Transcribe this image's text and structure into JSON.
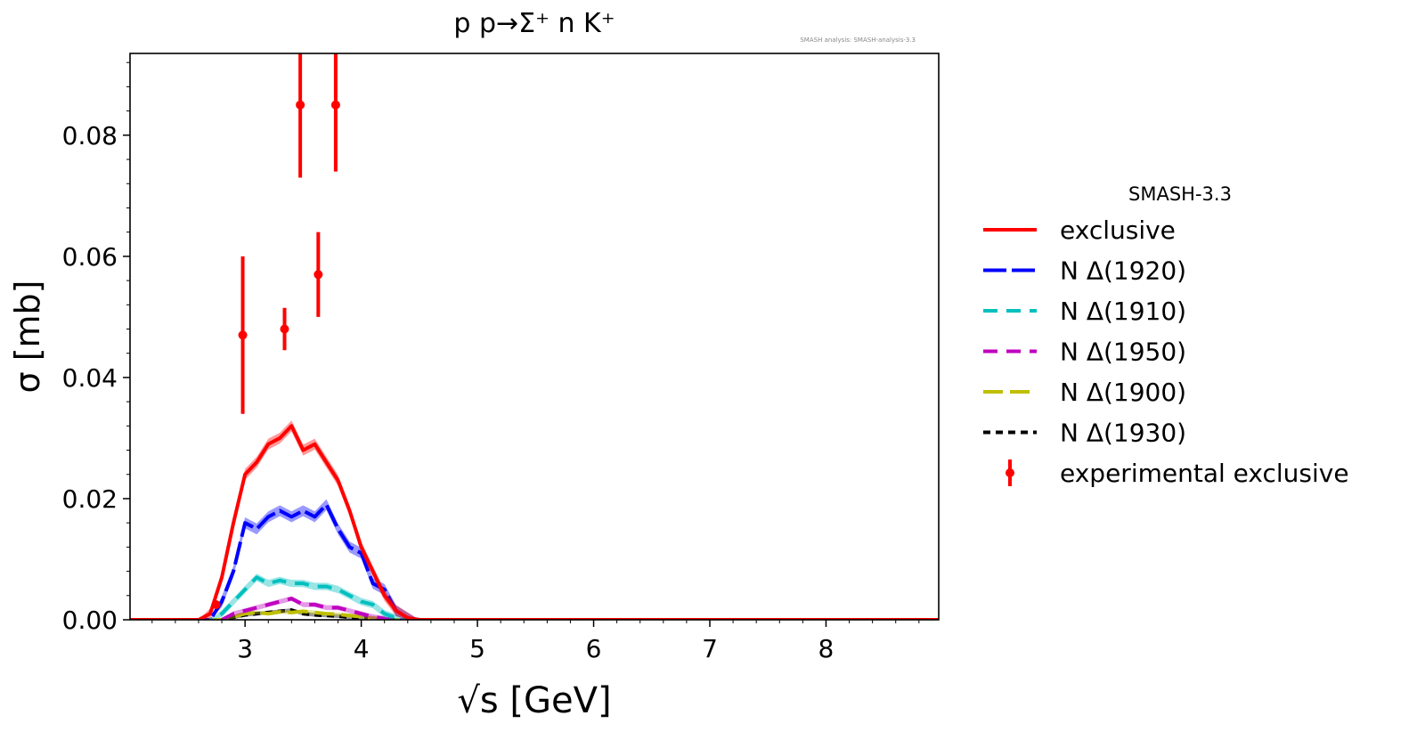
{
  "chart_data": {
    "type": "line",
    "title": "p p→Σ⁺ n K⁺",
    "watermark": "SMASH analysis: SMASH-analysis-3.3",
    "xlabel": "√s [GeV]",
    "ylabel": "σ [mb]",
    "xlim": [
      2.01,
      8.97
    ],
    "ylim": [
      0,
      0.0935
    ],
    "xticks": [
      "3",
      "4",
      "5",
      "6",
      "7",
      "8"
    ],
    "xtick_values": [
      3,
      4,
      5,
      6,
      7,
      8
    ],
    "yticks": [
      "0.00",
      "0.02",
      "0.04",
      "0.06",
      "0.08"
    ],
    "ytick_values": [
      0,
      0.02,
      0.04,
      0.06,
      0.08
    ],
    "grid": false,
    "legend": {
      "title": "SMASH-3.3",
      "placement": "outside-right"
    },
    "x": [
      2.0,
      2.6,
      2.7,
      2.8,
      2.9,
      3.0,
      3.1,
      3.2,
      3.3,
      3.4,
      3.5,
      3.6,
      3.7,
      3.8,
      3.9,
      4.0,
      4.1,
      4.2,
      4.3,
      4.4,
      4.5,
      9.0
    ],
    "series": [
      {
        "name": "exclusive",
        "color": "#ff0000",
        "dash": "solid",
        "uncertainty": 0.0009,
        "values": [
          0,
          0,
          0.001,
          0.007,
          0.016,
          0.024,
          0.026,
          0.029,
          0.03,
          0.032,
          0.028,
          0.029,
          0.026,
          0.023,
          0.018,
          0.012,
          0.008,
          0.004,
          0.0015,
          0.0003,
          0,
          0
        ]
      },
      {
        "name": "N Δ(1920)",
        "color": "#0000ff",
        "dash": "long",
        "uncertainty": 0.0009,
        "values": [
          0,
          0,
          0,
          0.003,
          0.008,
          0.016,
          0.015,
          0.017,
          0.018,
          0.017,
          0.018,
          0.017,
          0.019,
          0.015,
          0.012,
          0.011,
          0.006,
          0.005,
          0.0015,
          0.0003,
          0,
          0
        ]
      },
      {
        "name": "N Δ(1910)",
        "color": "#00bfbf",
        "dash": "medium",
        "uncertainty": 0.0006,
        "values": [
          0,
          0,
          0,
          0.001,
          0.003,
          0.005,
          0.007,
          0.006,
          0.0065,
          0.006,
          0.006,
          0.0055,
          0.0055,
          0.005,
          0.004,
          0.003,
          0.0025,
          0.001,
          0.0003,
          0,
          0,
          0
        ]
      },
      {
        "name": "N Δ(1950)",
        "color": "#bf00bf",
        "dash": "medium",
        "uncertainty": 0.0004,
        "values": [
          0,
          0,
          0,
          0,
          0.001,
          0.0015,
          0.002,
          0.0025,
          0.003,
          0.0035,
          0.0025,
          0.0025,
          0.002,
          0.002,
          0.0015,
          0.001,
          0.0005,
          0.0002,
          0,
          0,
          0,
          0
        ]
      },
      {
        "name": "N Δ(1900)",
        "color": "#bfbf00",
        "dash": "longshort",
        "uncertainty": 0.0003,
        "values": [
          0,
          0,
          0,
          0,
          0.0005,
          0.001,
          0.0012,
          0.001,
          0.0013,
          0.0012,
          0.0014,
          0.0012,
          0.001,
          0.0009,
          0.0007,
          0.0005,
          0.0003,
          0.0001,
          0,
          0,
          0,
          0
        ]
      },
      {
        "name": "N Δ(1930)",
        "color": "#000000",
        "dash": "short",
        "uncertainty": 0.0003,
        "values": [
          0,
          0,
          0,
          0,
          0.0004,
          0.0008,
          0.001,
          0.0012,
          0.0014,
          0.0016,
          0.001,
          0.0008,
          0.0007,
          0.0006,
          0.0004,
          0.0003,
          0.0002,
          0.0001,
          0,
          0,
          0,
          0
        ]
      }
    ],
    "experimental": {
      "name": "experimental exclusive",
      "color": "#ff0000",
      "points": [
        {
          "x": 2.75,
          "y": 0.0025,
          "err": 0.0005
        },
        {
          "x": 2.98,
          "y": 0.047,
          "err": 0.013
        },
        {
          "x": 3.34,
          "y": 0.048,
          "err": 0.0035
        },
        {
          "x": 3.475,
          "y": 0.085,
          "err": 0.012
        },
        {
          "x": 3.63,
          "y": 0.057,
          "err": 0.007
        },
        {
          "x": 3.78,
          "y": 0.085,
          "err": 0.011
        }
      ]
    }
  }
}
